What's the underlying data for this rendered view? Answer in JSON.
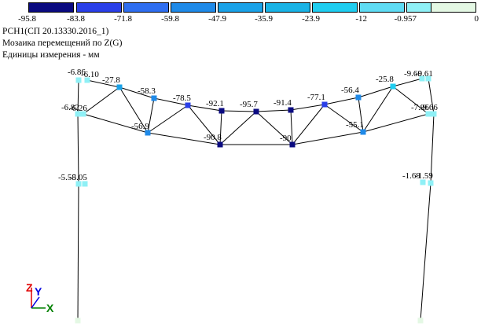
{
  "legend": {
    "swatches": [
      {
        "color": "#0a0a80"
      },
      {
        "color": "#2a3fe8"
      },
      {
        "color": "#2f6ef0"
      },
      {
        "color": "#1f8ae8"
      },
      {
        "color": "#1aa2e8"
      },
      {
        "color": "#19b3e6"
      },
      {
        "color": "#1fcdf0"
      },
      {
        "color": "#5fdcf4"
      },
      {
        "color": "#8ff0f6"
      },
      {
        "color": "#e4f8e4"
      }
    ],
    "values": [
      "-95.8",
      "-83.8",
      "-71.8",
      "-59.8",
      "-47.9",
      "-35.9",
      "-23.9",
      "-12",
      "-0.957",
      "0"
    ]
  },
  "info": {
    "load_case": "РСН1(СП 20.13330.2016_1)",
    "mosaic_title": "Мозаика перемещений по Z(G)",
    "units": "Единицы измерения - мм"
  },
  "nodes": [
    {
      "id": "n1",
      "label": "-6.86",
      "value": -6.86,
      "color": "#8ff0f6"
    },
    {
      "id": "n2",
      "label": "-6.10",
      "value": -6.1,
      "color": "#8ff0f6"
    },
    {
      "id": "n3",
      "label": "-27.8",
      "value": -27.8,
      "color": "#1aa2e8"
    },
    {
      "id": "n4",
      "label": "-58.3",
      "value": -58.3,
      "color": "#1f8ae8"
    },
    {
      "id": "n5",
      "label": "-78.5",
      "value": -78.5,
      "color": "#2a3fe8"
    },
    {
      "id": "n6",
      "label": "-92.1",
      "value": -92.1,
      "color": "#0a0a80"
    },
    {
      "id": "n7",
      "label": "-95.7",
      "value": -95.7,
      "color": "#0a0a80"
    },
    {
      "id": "n8",
      "label": "-91.4",
      "value": -91.4,
      "color": "#0a0a80"
    },
    {
      "id": "n9",
      "label": "-77.1",
      "value": -77.1,
      "color": "#2a3fe8"
    },
    {
      "id": "n10",
      "label": "-56.4",
      "value": -56.4,
      "color": "#1f8ae8"
    },
    {
      "id": "n11",
      "label": "-25.8",
      "value": -25.8,
      "color": "#1fcdf0"
    },
    {
      "id": "n12",
      "label": "-9.60",
      "value": -9.6,
      "color": "#8ff0f6"
    },
    {
      "id": "n13",
      "label": "-9.61",
      "value": -9.61,
      "color": "#8ff0f6"
    },
    {
      "id": "n14",
      "label": "-6.82",
      "value": -6.82,
      "color": "#8ff0f6"
    },
    {
      "id": "n15",
      "label": "-6.26",
      "value": -6.26,
      "color": "#8ff0f6"
    },
    {
      "id": "n16",
      "label": "-56.9",
      "value": -56.9,
      "color": "#1f8ae8"
    },
    {
      "id": "n17",
      "label": "-90.8",
      "value": -90.8,
      "color": "#0a0a80"
    },
    {
      "id": "n18",
      "label": "-90",
      "value": -90,
      "color": "#0a0a80"
    },
    {
      "id": "n19",
      "label": "-55.1",
      "value": -55.1,
      "color": "#1f8ae8"
    },
    {
      "id": "n20",
      "label": "-7.96",
      "value": -7.96,
      "color": "#8ff0f6"
    },
    {
      "id": "n21",
      "label": "-9.66",
      "value": -9.66,
      "color": "#8ff0f6"
    },
    {
      "id": "n22",
      "label": "-5.58",
      "value": -5.58,
      "color": "#8ff0f6"
    },
    {
      "id": "n23",
      "label": "-5.05",
      "value": -5.05,
      "color": "#8ff0f6"
    },
    {
      "id": "n24",
      "label": "-1.69",
      "value": -1.69,
      "color": "#8ff0f6"
    },
    {
      "id": "n25",
      "label": "-1.59",
      "value": -1.59,
      "color": "#8ff0f6"
    },
    {
      "id": "n26",
      "label": "",
      "value": 0,
      "color": "#e4f8e4"
    },
    {
      "id": "n27",
      "label": "",
      "value": 0,
      "color": "#e4f8e4"
    }
  ],
  "axis": {
    "z": "Z",
    "y": "Y",
    "x": "X",
    "z_color": "#e00000",
    "y_color": "#0000e0",
    "x_color": "#008000"
  }
}
